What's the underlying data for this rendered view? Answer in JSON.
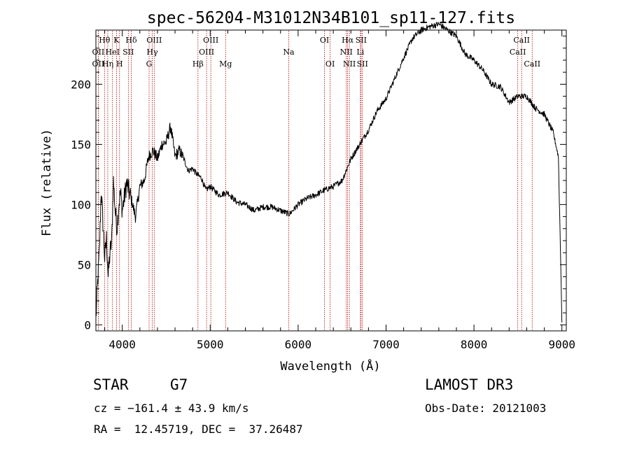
{
  "chart_data": {
    "type": "line",
    "title": "spec-56204-M31012N34B101_sp11-127.fits",
    "xlabel": "Wavelength (Å)",
    "ylabel": "Flux (relative)",
    "xlim": [
      3700,
      9050
    ],
    "ylim": [
      -5,
      245
    ],
    "xticks": [
      4000,
      5000,
      6000,
      7000,
      8000,
      9000
    ],
    "yticks": [
      0,
      50,
      100,
      150,
      200
    ],
    "series": [
      {
        "name": "flux",
        "x": [
          3700,
          3720,
          3740,
          3760,
          3780,
          3800,
          3820,
          3840,
          3860,
          3880,
          3900,
          3920,
          3940,
          3960,
          3980,
          4000,
          4050,
          4100,
          4150,
          4200,
          4250,
          4300,
          4350,
          4400,
          4450,
          4500,
          4550,
          4600,
          4650,
          4700,
          4750,
          4800,
          4850,
          4900,
          4950,
          5000,
          5100,
          5200,
          5300,
          5400,
          5500,
          5600,
          5700,
          5800,
          5900,
          6000,
          6100,
          6200,
          6300,
          6400,
          6500,
          6600,
          6700,
          6800,
          6900,
          7000,
          7100,
          7200,
          7300,
          7400,
          7500,
          7600,
          7700,
          7800,
          7900,
          8000,
          8100,
          8200,
          8300,
          8400,
          8500,
          8600,
          8700,
          8800,
          8900,
          8960,
          8990,
          9000
        ],
        "values": [
          5,
          35,
          60,
          112,
          85,
          55,
          72,
          40,
          60,
          70,
          120,
          95,
          80,
          100,
          110,
          95,
          118,
          105,
          90,
          115,
          120,
          140,
          145,
          138,
          150,
          152,
          165,
          140,
          145,
          138,
          128,
          130,
          125,
          122,
          112,
          115,
          108,
          110,
          102,
          100,
          95,
          98,
          98,
          95,
          92,
          100,
          105,
          108,
          112,
          115,
          120,
          138,
          150,
          162,
          178,
          188,
          205,
          222,
          238,
          245,
          248,
          250,
          245,
          240,
          225,
          220,
          212,
          200,
          198,
          185,
          190,
          190,
          180,
          175,
          160,
          140,
          40,
          2
        ]
      }
    ],
    "lines": [
      {
        "label": "Hθ",
        "x": 3798,
        "row": 1
      },
      {
        "label": "OII",
        "x": 3727,
        "row": 2
      },
      {
        "label": "OII",
        "x": 3727,
        "row": 3
      },
      {
        "label": "K",
        "x": 3934,
        "row": 1
      },
      {
        "label": "Hη",
        "x": 3835,
        "row": 3
      },
      {
        "label": "HeI",
        "x": 3889,
        "row": 2
      },
      {
        "label": "H",
        "x": 3969,
        "row": 3
      },
      {
        "label": "SII",
        "x": 4069,
        "row": 2
      },
      {
        "label": "Hδ",
        "x": 4102,
        "row": 1
      },
      {
        "label": "OIII",
        "x": 4363,
        "row": 1
      },
      {
        "label": "Hγ",
        "x": 4341,
        "row": 2
      },
      {
        "label": "G",
        "x": 4305,
        "row": 3
      },
      {
        "label": "Hβ",
        "x": 4861,
        "row": 3
      },
      {
        "label": "OIII",
        "x": 5007,
        "row": 1
      },
      {
        "label": "OIII",
        "x": 4959,
        "row": 2
      },
      {
        "label": "Mg",
        "x": 5175,
        "row": 3
      },
      {
        "label": "Na",
        "x": 5893,
        "row": 2
      },
      {
        "label": "OI",
        "x": 6300,
        "row": 1
      },
      {
        "label": "OI",
        "x": 6364,
        "row": 3
      },
      {
        "label": "Hα",
        "x": 6563,
        "row": 1
      },
      {
        "label": "NII",
        "x": 6548,
        "row": 2
      },
      {
        "label": "NII",
        "x": 6583,
        "row": 3
      },
      {
        "label": "SII",
        "x": 6716,
        "row": 1
      },
      {
        "label": "Li",
        "x": 6708,
        "row": 2
      },
      {
        "label": "SII",
        "x": 6731,
        "row": 3
      },
      {
        "label": "CaII",
        "x": 8542,
        "row": 1
      },
      {
        "label": "CaII",
        "x": 8498,
        "row": 2
      },
      {
        "label": "CaII",
        "x": 8662,
        "row": 3
      }
    ]
  },
  "info": {
    "class_label": "STAR",
    "subclass": "G7",
    "survey": "LAMOST DR3",
    "cz": "cz = −161.4 ± 43.9 km/s",
    "obs_date": "Obs-Date: 20121003",
    "radec": "RA =  12.45719, DEC =  37.26487"
  }
}
